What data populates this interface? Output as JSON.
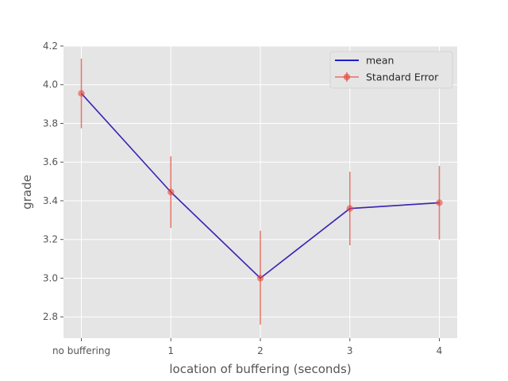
{
  "chart_data": {
    "type": "line",
    "title": "",
    "xlabel": "location of buffering (seconds)",
    "ylabel": "grade",
    "categories": [
      "no buffering",
      "1",
      "2",
      "3",
      "4"
    ],
    "ylim": [
      2.69,
      4.2
    ],
    "yticks": [
      "2.8",
      "3.0",
      "3.2",
      "3.4",
      "3.6",
      "3.8",
      "4.0",
      "4.2"
    ],
    "grid": true,
    "legend_position": "top-right",
    "series": [
      {
        "name": "mean",
        "kind": "line",
        "color": "#0000cc",
        "values": [
          3.955,
          3.445,
          3.0,
          3.36,
          3.39
        ]
      },
      {
        "name": "Standard Error",
        "kind": "errorbar",
        "color": "#e8483a",
        "values": [
          3.955,
          3.445,
          3.0,
          3.36,
          3.39
        ],
        "lower": [
          3.775,
          3.26,
          2.76,
          3.17,
          3.2
        ],
        "upper": [
          4.135,
          3.63,
          3.245,
          3.55,
          3.58
        ]
      }
    ]
  }
}
